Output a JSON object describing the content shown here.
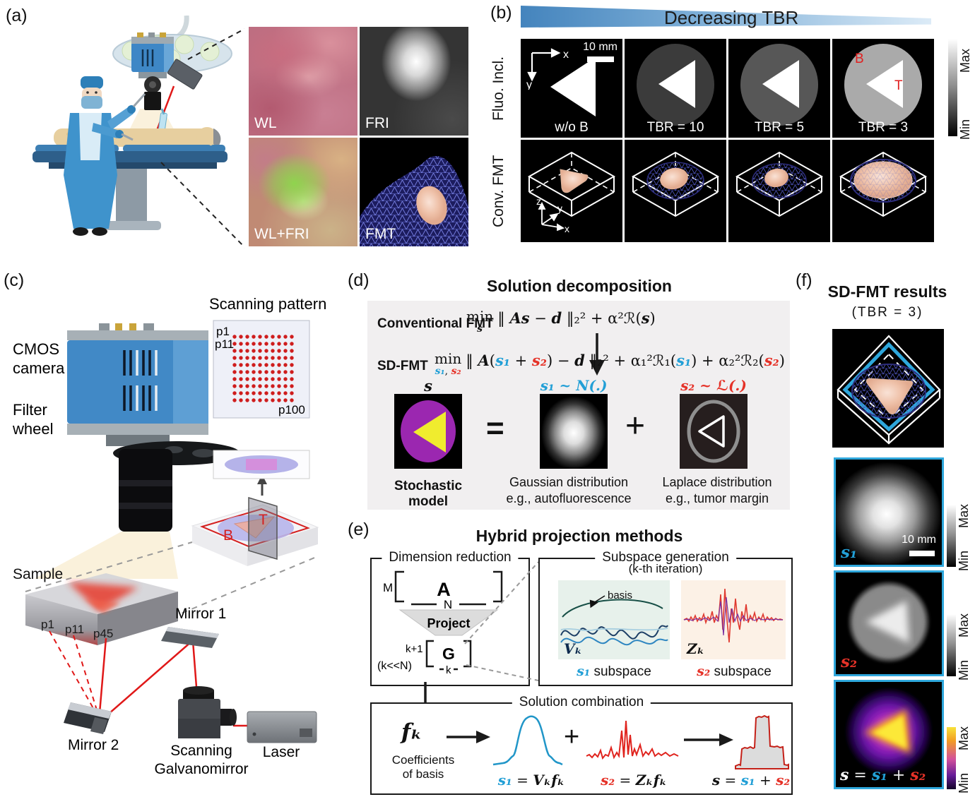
{
  "colors": {
    "s1_blue": "#229fd6",
    "s2_red": "#e53228",
    "wedge_start": "#4484bd",
    "wedge_end": "#dcebf7",
    "navy_mesh": "#3c3c9e",
    "pink_blob": "#f0c9b6",
    "purple_circle": "#9b27b0",
    "yellow_triangle": "#f0ec2e",
    "panel_d_bg": "#f1eff0",
    "result_border": "#2ea7dc"
  },
  "a": {
    "tag": "(a)",
    "photos": {
      "wl": "WL",
      "fri": "FRI",
      "wlfri": "WL+FRI",
      "fmt": "FMT"
    }
  },
  "b": {
    "tag": "(b)",
    "header": "Decreasing TBR",
    "row1": "Fluo. Incl.",
    "row2": "Conv. FMT",
    "axis_x": "x",
    "axis_y": "y",
    "scalebar": "10 mm",
    "captions": [
      "w/o B",
      "TBR = 10",
      "TBR = 5",
      "TBR = 3"
    ],
    "marker_b": "B",
    "marker_t": "T",
    "ax_z": "z",
    "ax_y": "y",
    "ax_x": "x",
    "cb_max": "Max",
    "cb_min": "Min"
  },
  "c": {
    "tag": "(c)",
    "cmos_1": "CMOS",
    "cmos_2": "camera",
    "filter_1": "Filter",
    "filter_2": "wheel",
    "scan_title": "Scanning pattern",
    "p1": "p1",
    "p11": "p11",
    "p100": "p100",
    "bt_b": "B",
    "bt_t": "T",
    "sample": "Sample",
    "sp1": "p1",
    "sp11": "p11",
    "sp45": "p45",
    "mirror1": "Mirror 1",
    "mirror2": "Mirror 2",
    "galvo_1": "Scanning",
    "galvo_2": "Galvanomirror",
    "laser": "Laser"
  },
  "d": {
    "tag": "(d)",
    "title": "Solution decomposition",
    "conv_label": "Conventional FMT",
    "sd_label": "SD-FMT",
    "min": "min",
    "conv_min_sub": "s",
    "sd_min_sub": [
      {
        "t": "s₁",
        "c": "vb"
      },
      {
        "t": ", ",
        "c": "o"
      },
      {
        "t": "s₂",
        "c": "vr"
      }
    ],
    "conv_eq": [
      {
        "t": "‖ ",
        "c": "o"
      },
      {
        "t": "As",
        "c": "v"
      },
      {
        "t": " − ",
        "c": "o"
      },
      {
        "t": "d",
        "c": "v"
      },
      {
        "t": " ‖₂² + α²ℛ(",
        "c": "o"
      },
      {
        "t": "s",
        "c": "v"
      },
      {
        "t": ")",
        "c": "o"
      }
    ],
    "sd_eq": [
      {
        "t": "‖ ",
        "c": "o"
      },
      {
        "t": "A",
        "c": "v"
      },
      {
        "t": "(",
        "c": "o"
      },
      {
        "t": "s₁",
        "c": "vb"
      },
      {
        "t": " + ",
        "c": "o"
      },
      {
        "t": "s₂",
        "c": "vr"
      },
      {
        "t": ") − ",
        "c": "o"
      },
      {
        "t": "d",
        "c": "v"
      },
      {
        "t": " ‖₂² + α₁²ℛ₁(",
        "c": "o"
      },
      {
        "t": "s₁",
        "c": "vb"
      },
      {
        "t": ") + α₂²ℛ₂(",
        "c": "o"
      },
      {
        "t": "s₂",
        "c": "vr"
      },
      {
        "t": ")",
        "c": "o"
      }
    ],
    "s_head": [
      {
        "t": "s",
        "c": "v"
      }
    ],
    "s1_head": [
      {
        "t": "s₁ ~ N(.)",
        "c": "vb"
      }
    ],
    "s2_head": [
      {
        "t": "s₂ ~ ℒ(.)",
        "c": "vr"
      }
    ],
    "equals": "=",
    "plus": "+",
    "cap_model": "Stochastic model",
    "cap_g1": "Gaussian distribution",
    "cap_g2": "e.g., autofluorescence",
    "cap_l1": "Laplace distribution",
    "cap_l2": "e.g., tumor margin"
  },
  "e": {
    "tag": "(e)",
    "title": "Hybrid projection methods",
    "box1": "Dimension reduction",
    "m": "M",
    "a": "A",
    "n": "N",
    "project": "Project",
    "g": "G",
    "kp1": "k+1",
    "k": "k",
    "kn": "(k<<N)",
    "box2": "Subspace generation",
    "iter": "(k-th iteration)",
    "basis": "basis",
    "vk": "Vₖ",
    "zk": "Zₖ",
    "s1_sub": [
      {
        "t": "s₁",
        "c": "vb"
      },
      {
        "t": " subspace",
        "c": "t"
      }
    ],
    "s2_sub": [
      {
        "t": "s₂",
        "c": "vr"
      },
      {
        "t": " subspace",
        "c": "t"
      }
    ],
    "box3": "Solution combination",
    "fk": "fₖ",
    "coef_1": "Coefficients",
    "coef_2": "of basis",
    "plus": "+",
    "s1_eq": [
      {
        "t": "s₁",
        "c": "vb"
      },
      {
        "t": " = ",
        "c": "o"
      },
      {
        "t": "Vₖfₖ",
        "c": "v"
      }
    ],
    "s2_eq": [
      {
        "t": "s₂",
        "c": "vr"
      },
      {
        "t": " = ",
        "c": "o"
      },
      {
        "t": "Zₖfₖ",
        "c": "v"
      }
    ],
    "s_eq": [
      {
        "t": "s",
        "c": "v"
      },
      {
        "t": " = ",
        "c": "o"
      },
      {
        "t": "s₁",
        "c": "vb"
      },
      {
        "t": " + ",
        "c": "o"
      },
      {
        "t": "s₂",
        "c": "vr"
      }
    ]
  },
  "f": {
    "tag": "(f)",
    "title": "SD-FMT results",
    "subtitle": "(TBR = 3)",
    "scalebar": "10 mm",
    "s1_label": [
      {
        "t": "s₁",
        "c": "vb"
      }
    ],
    "s2_label": [
      {
        "t": "s₂",
        "c": "vr"
      }
    ],
    "s_eq": [
      {
        "t": "s",
        "c": "vw"
      },
      {
        "t": " = ",
        "c": "ow"
      },
      {
        "t": "s₁",
        "c": "vb"
      },
      {
        "t": " + ",
        "c": "ow"
      },
      {
        "t": "s₂",
        "c": "vr"
      }
    ],
    "cb_max": "Max",
    "cb_min": "Min"
  }
}
